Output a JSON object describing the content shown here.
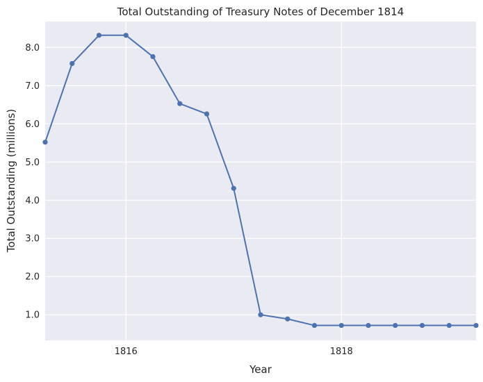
{
  "chart_data": {
    "type": "line",
    "title": "Total Outstanding of Treasury Notes of December 1814",
    "xlabel": "Year",
    "ylabel": "Total Outstanding (millions)",
    "grid": true,
    "xlim": [
      1815.25,
      1819.25
    ],
    "ylim": [
      0.33,
      8.68
    ],
    "x_ticks": [
      1816,
      1818
    ],
    "x_tick_labels": [
      "1816",
      "1818"
    ],
    "y_ticks": [
      1.0,
      2.0,
      3.0,
      4.0,
      5.0,
      6.0,
      7.0,
      8.0
    ],
    "y_tick_labels": [
      "1.0",
      "2.0",
      "3.0",
      "4.0",
      "5.0",
      "6.0",
      "7.0",
      "8.0"
    ],
    "series": [
      {
        "color": "#4c72b0",
        "x": [
          1815.25,
          1815.5,
          1815.75,
          1816.0,
          1816.25,
          1816.5,
          1816.75,
          1817.0,
          1817.25,
          1817.5,
          1817.75,
          1818.0,
          1818.25,
          1818.5,
          1818.75,
          1819.0,
          1819.25
        ],
        "y": [
          5.52,
          7.58,
          8.32,
          8.32,
          7.76,
          6.53,
          6.26,
          4.31,
          1.0,
          0.89,
          0.72,
          0.72,
          0.72,
          0.72,
          0.72,
          0.72,
          0.72
        ]
      }
    ]
  }
}
